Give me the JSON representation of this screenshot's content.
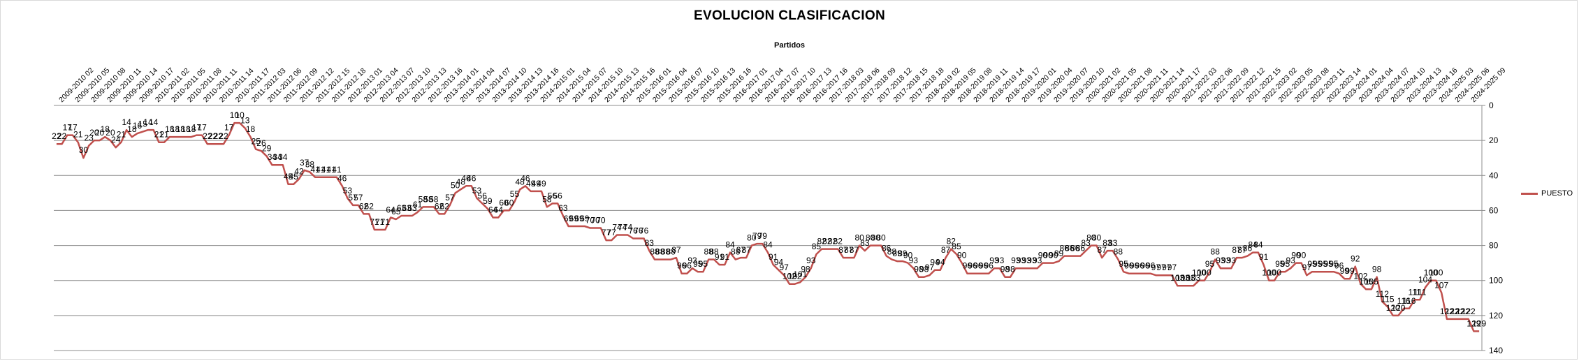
{
  "chart_data": {
    "type": "line",
    "title": "EVOLUCION CLASIFICACION",
    "subtitle": "Partidos",
    "legend": "right",
    "reverse_y": true,
    "ylim": [
      0,
      140
    ],
    "yticks": [
      0,
      20,
      40,
      60,
      80,
      100,
      120,
      140
    ],
    "grid": true,
    "x_tick_labels": [
      "2009-2010 02",
      "2009-2010 05",
      "2009-2010 08",
      "2009-2010 11",
      "2009-2010 14",
      "2009-2010 17",
      "2010-2011 02",
      "2010-2011 05",
      "2010-2011 08",
      "2010-2011 11",
      "2010-2011 14",
      "2010-2011 17",
      "2011-2012 03",
      "2011-2012 06",
      "2011-2012 09",
      "2011-2012 12",
      "2011-2012 15",
      "2011-2012 18",
      "2012-2013 01",
      "2012-2013 04",
      "2012-2013 07",
      "2012-2013 10",
      "2012-2013 13",
      "2012-2013 16",
      "2013-2014 01",
      "2013-2014 04",
      "2013-2014 07",
      "2013-2014 10",
      "2013-2014 13",
      "2013-2014 16",
      "2014-2015 01",
      "2014-2015 04",
      "2014-2015 07",
      "2014-2015 10",
      "2014-2015 13",
      "2014-2015 16",
      "2015-2016 01",
      "2015-2016 04",
      "2015-2016 07",
      "2015-2016 10",
      "2015-2016 13",
      "2015-2016 16",
      "2016-2017 01",
      "2016-2017 04",
      "2016-2017 07",
      "2016-2017 10",
      "2016-2017 13",
      "2016-2017 16",
      "2017-2018 03",
      "2017-2018 06",
      "2017-2018 09",
      "2017-2018 12",
      "2017-2018 15",
      "2017-2018 18",
      "2018-2019 02",
      "2018-2019 05",
      "2018-2019 08",
      "2018-2019 11",
      "2018-2019 14",
      "2018-2019 17",
      "2019-2020 01",
      "2019-2020 04",
      "2019-2020 07",
      "2019-2020 10",
      "2020-2021 02",
      "2020-2021 05",
      "2020-2021 08",
      "2020-2021 11",
      "2020-2021 14",
      "2020-2021 17",
      "2021-2022 03",
      "2021-2022 06",
      "2021-2022 09",
      "2021-2022 12",
      "2021-2022 15",
      "2022-2023 02",
      "2022-2023 05",
      "2022-2023 08",
      "2022-2023 11",
      "2022-2023 14",
      "2023-2024 01",
      "2023-2024 04",
      "2023-2024 07",
      "2023-2024 10",
      "2023-2024 13",
      "2023-2024 16",
      "2024-2025 03",
      "2024-2025 06",
      "2024-2025 09"
    ],
    "series": [
      {
        "name": "PUESTO",
        "color": "#c0504d",
        "values": [
          22,
          22,
          17,
          17,
          21,
          30,
          23,
          20,
          20,
          18,
          20,
          24,
          21,
          14,
          18,
          16,
          15,
          14,
          14,
          21,
          21,
          18,
          18,
          18,
          18,
          18,
          17,
          17,
          22,
          22,
          22,
          22,
          17,
          10,
          10,
          13,
          18,
          25,
          26,
          29,
          34,
          34,
          34,
          45,
          45,
          42,
          37,
          38,
          41,
          41,
          41,
          41,
          41,
          46,
          53,
          57,
          57,
          62,
          62,
          71,
          71,
          71,
          64,
          65,
          63,
          63,
          63,
          61,
          58,
          58,
          58,
          62,
          62,
          57,
          50,
          48,
          46,
          46,
          53,
          56,
          59,
          64,
          64,
          60,
          60,
          55,
          48,
          46,
          49,
          49,
          49,
          58,
          56,
          56,
          63,
          69,
          69,
          69,
          69,
          70,
          70,
          70,
          77,
          77,
          74,
          74,
          74,
          76,
          76,
          76,
          83,
          88,
          88,
          88,
          88,
          87,
          96,
          96,
          93,
          95,
          95,
          88,
          88,
          91,
          91,
          84,
          88,
          87,
          87,
          80,
          79,
          79,
          84,
          91,
          94,
          97,
          102,
          102,
          101,
          98,
          93,
          85,
          82,
          82,
          82,
          82,
          87,
          87,
          87,
          80,
          83,
          80,
          80,
          80,
          86,
          88,
          89,
          89,
          90,
          93,
          98,
          98,
          97,
          94,
          94,
          87,
          82,
          85,
          90,
          96,
          96,
          96,
          96,
          96,
          93,
          93,
          98,
          98,
          93,
          93,
          93,
          93,
          93,
          90,
          90,
          90,
          89,
          86,
          86,
          86,
          86,
          83,
          80,
          80,
          87,
          83,
          83,
          88,
          95,
          96,
          96,
          96,
          96,
          96,
          97,
          97,
          97,
          97,
          103,
          103,
          103,
          103,
          100,
          100,
          95,
          88,
          93,
          93,
          93,
          87,
          87,
          86,
          84,
          84,
          91,
          100,
          100,
          95,
          95,
          93,
          90,
          90,
          97,
          95,
          95,
          95,
          95,
          95,
          96,
          99,
          99,
          92,
          102,
          105,
          105,
          98,
          112,
          115,
          120,
          120,
          116,
          116,
          111,
          111,
          104,
          100,
          100,
          107,
          122,
          122,
          122,
          122,
          122,
          129,
          129
        ]
      }
    ],
    "point_labels": [
      "22",
      "22",
      "17",
      "17",
      "21",
      "30",
      "23",
      "20",
      "20",
      "18",
      "20",
      "24",
      "21",
      "14",
      "18",
      "16",
      "15",
      "14",
      "14",
      "21",
      "21",
      "18",
      "18",
      "18",
      "18",
      "18",
      "17",
      "17",
      "22",
      "22",
      "22",
      "22",
      "17",
      "10",
      "10",
      "13",
      "18",
      "25",
      "26",
      "29",
      "34",
      "34",
      "34",
      "45",
      "45",
      "42",
      "37",
      "38",
      "41",
      "41",
      "41",
      "41",
      "41",
      "46",
      "53",
      "57",
      "57",
      "62",
      "62",
      "71",
      "71",
      "71",
      "64",
      "65",
      "63",
      "63",
      "63",
      "61",
      "58",
      "58",
      "58",
      "62",
      "62",
      "57",
      "50",
      "48",
      "46",
      "46",
      "53",
      "56",
      "59",
      "64",
      "64",
      "60",
      "60",
      "55",
      "48",
      "46",
      "49",
      "49",
      "49",
      "58",
      "56",
      "56",
      "63",
      "69",
      "69",
      "69",
      "69",
      "70",
      "70",
      "70",
      "77",
      "77",
      "74",
      "74",
      "74",
      "76",
      "76",
      "76",
      "83",
      "88",
      "88",
      "88",
      "88",
      "87",
      "96",
      "96",
      "93",
      "95",
      "95",
      "88",
      "88",
      "91",
      "91",
      "84",
      "88",
      "87",
      "87",
      "80",
      "79",
      "79",
      "84",
      "91",
      "94",
      "97",
      "102",
      "102",
      "101",
      "98",
      "93",
      "85",
      "82",
      "82",
      "82",
      "82",
      "87",
      "87",
      "87",
      "80",
      "83",
      "80",
      "80",
      "80",
      "86",
      "88",
      "89",
      "89",
      "90",
      "93",
      "98",
      "98",
      "97",
      "94",
      "94",
      "87",
      "82",
      "85",
      "90",
      "96",
      "96",
      "96",
      "96",
      "96",
      "93",
      "93",
      "98",
      "98",
      "93",
      "93",
      "93",
      "93",
      "93",
      "90",
      "90",
      "90",
      "89",
      "86",
      "86",
      "86",
      "86",
      "83",
      "80",
      "80",
      "87",
      "83",
      "83",
      "88",
      "95",
      "96",
      "96",
      "96",
      "96",
      "96",
      "97",
      "97",
      "97",
      "97",
      "103",
      "103",
      "103",
      "103",
      "100",
      "100",
      "95",
      "88",
      "93",
      "93",
      "93",
      "87",
      "87",
      "86",
      "84",
      "84",
      "91",
      "100",
      "100",
      "95",
      "95",
      "93",
      "90",
      "90",
      "97",
      "95",
      "95",
      "95",
      "95",
      "95",
      "96",
      "99",
      "99",
      "92",
      "102",
      "105",
      "105",
      "98",
      "112",
      "115",
      "120",
      "120",
      "116",
      "116",
      "111",
      "111",
      "104",
      "100",
      "100",
      "107",
      "122",
      "122",
      "122",
      "122",
      "122",
      "129",
      "129"
    ]
  }
}
